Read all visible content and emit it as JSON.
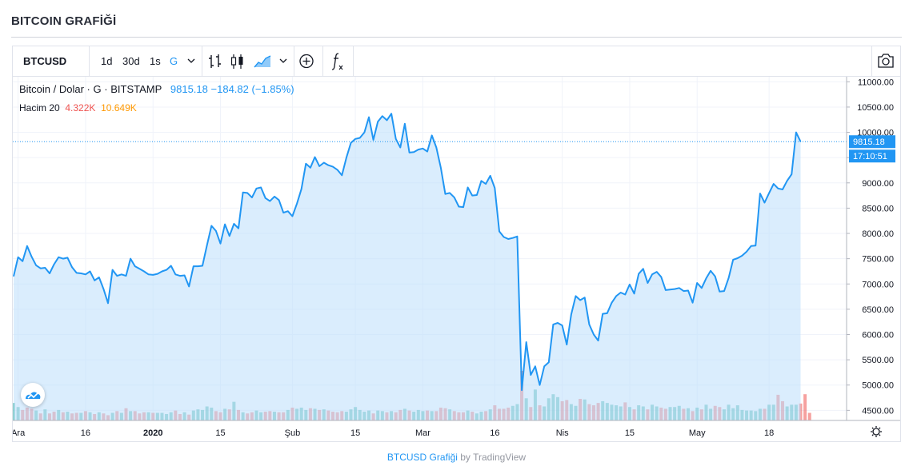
{
  "page": {
    "title": "BITCOIN GRAFİĞİ"
  },
  "toolbar": {
    "symbol": "BTCUSD",
    "intervals": [
      "1d",
      "30d",
      "1s",
      "G"
    ],
    "active_interval": "G",
    "icons": [
      "bar-chart-icon",
      "candlestick-icon",
      "area-chart-icon",
      "add-compare-icon",
      "indicators-icon",
      "camera-icon"
    ]
  },
  "legend": {
    "name": "Bitcoin / Dolar",
    "sep": "·",
    "interval": "G",
    "exchange": "BITSTAMP",
    "last": "9815.18",
    "change": "−184.82",
    "change_pct": "(−1.85%)",
    "volume_label": "Hacim 20",
    "volume_value": "4.322K",
    "volume_ma": "10.649K"
  },
  "price_label": {
    "value": "9815.18",
    "time": "17:10:51"
  },
  "colors": {
    "line": "#2196f3",
    "area": "#bbdefb",
    "vol_up": "#26a69a",
    "vol_down": "#ef5350"
  },
  "footer": {
    "link": "BTCUSD Grafiği",
    "by": "by",
    "brand": "TradingView"
  },
  "chart_data": {
    "type": "area",
    "title": "",
    "xlabel": "",
    "ylabel": "",
    "ylim": [
      4300,
      11100
    ],
    "y_ticks": [
      "11000.00",
      "10500.00",
      "10000.00",
      "9500.00",
      "9000.00",
      "8500.00",
      "8000.00",
      "7500.00",
      "7000.00",
      "6500.00",
      "6000.00",
      "5500.00",
      "5000.00",
      "4500.00"
    ],
    "y_tick_values": [
      11000,
      10500,
      10000,
      9500,
      9000,
      8500,
      8000,
      7500,
      7000,
      6500,
      6000,
      5500,
      5000,
      4500
    ],
    "x_ticks": [
      "Ara",
      "16",
      "2020",
      "15",
      "Şub",
      "15",
      "Mar",
      "16",
      "Nis",
      "15",
      "May",
      "18"
    ],
    "x_tick_index": [
      1,
      16,
      31,
      46,
      62,
      76,
      91,
      107,
      122,
      137,
      152,
      168
    ],
    "series": [
      {
        "values": [
          7150,
          7530,
          7450,
          7750,
          7540,
          7370,
          7310,
          7320,
          7210,
          7390,
          7530,
          7500,
          7520,
          7330,
          7220,
          7210,
          7190,
          7250,
          7070,
          7130,
          6900,
          6620,
          7280,
          7160,
          7190,
          7160,
          7500,
          7350,
          7300,
          7250,
          7190,
          7180,
          7200,
          7250,
          7280,
          7360,
          7190,
          7160,
          7170,
          6950,
          7350,
          7350,
          7360,
          7770,
          8150,
          8050,
          7800,
          8180,
          7950,
          8190,
          8100,
          8810,
          8800,
          8710,
          8890,
          8910,
          8700,
          8640,
          8730,
          8660,
          8410,
          8440,
          8340,
          8590,
          8880,
          9380,
          9300,
          9510,
          9330,
          9400,
          9350,
          9320,
          9260,
          9150,
          9500,
          9790,
          9870,
          9890,
          10000,
          10300,
          9850,
          10210,
          10320,
          10240,
          10370,
          9870,
          9700,
          10170,
          9600,
          9610,
          9660,
          9680,
          9620,
          9940,
          9700,
          9300,
          8780,
          8800,
          8710,
          8530,
          8520,
          8910,
          8750,
          8760,
          9040,
          8980,
          9140,
          8900,
          8040,
          7930,
          7890,
          7910,
          7940,
          4900,
          5850,
          5200,
          5370,
          5000,
          5370,
          5450,
          6200,
          6230,
          6180,
          5800,
          6400,
          6760,
          6680,
          6730,
          6200,
          6000,
          5880,
          6410,
          6420,
          6630,
          6760,
          6830,
          6790,
          6990,
          6810,
          7200,
          7300,
          7020,
          7190,
          7240,
          7140,
          6880,
          6890,
          6900,
          6920,
          6860,
          6870,
          6630,
          7020,
          6920,
          7110,
          7260,
          7150,
          6850,
          6860,
          7120,
          7480,
          7510,
          7560,
          7640,
          7750,
          7760,
          8790,
          8610,
          8800,
          8980,
          8890,
          8870,
          9040,
          9170,
          10000,
          9815.18
        ]
      },
      {
        "name": "Hacim",
        "up": [
          true,
          true,
          false,
          false,
          false,
          true,
          false,
          true,
          false,
          false,
          true,
          false,
          true,
          false,
          false,
          true,
          false,
          true,
          false,
          true,
          false,
          false,
          true,
          false,
          true,
          false,
          true,
          false,
          false,
          false,
          true,
          false,
          true,
          true,
          true,
          true,
          false,
          false,
          true,
          false,
          true,
          true,
          true,
          true,
          true,
          false,
          false,
          true,
          false,
          true,
          false,
          true,
          false,
          false,
          true,
          true,
          false,
          false,
          true,
          false,
          false,
          true,
          false,
          true,
          true,
          true,
          false,
          true,
          false,
          true,
          false,
          false,
          false,
          false,
          true,
          true,
          true,
          true,
          true,
          true,
          false,
          true,
          true,
          false,
          true,
          false,
          false,
          true,
          false,
          true,
          true,
          true,
          false,
          true,
          false,
          false,
          false,
          true,
          false,
          false,
          false,
          true,
          false,
          true,
          true,
          false,
          true,
          false,
          false,
          false,
          false,
          true,
          true,
          false,
          true,
          false,
          true,
          false,
          true,
          true,
          true,
          true,
          false,
          false,
          true,
          true,
          false,
          true,
          false,
          false,
          false,
          true,
          true,
          true,
          true,
          true,
          false,
          true,
          false,
          true,
          true,
          false,
          true,
          true,
          false,
          false,
          true,
          true,
          true,
          false,
          true,
          false,
          true,
          false,
          true,
          true,
          false,
          false,
          true,
          true,
          true,
          true,
          true,
          true,
          true,
          true,
          true,
          false,
          true,
          true,
          false,
          false,
          true,
          true,
          true,
          false
        ],
        "values": [
          30,
          23,
          18,
          22,
          20,
          17,
          12,
          19,
          12,
          15,
          18,
          14,
          15,
          12,
          13,
          13,
          16,
          14,
          11,
          14,
          12,
          9,
          13,
          16,
          13,
          21,
          16,
          16,
          12,
          14,
          14,
          13,
          13,
          13,
          11,
          14,
          17,
          11,
          14,
          10,
          17,
          19,
          18,
          24,
          22,
          16,
          14,
          20,
          19,
          32,
          18,
          14,
          12,
          14,
          17,
          14,
          15,
          16,
          15,
          14,
          14,
          18,
          22,
          20,
          22,
          18,
          21,
          20,
          18,
          19,
          17,
          15,
          14,
          16,
          15,
          19,
          23,
          18,
          15,
          17,
          12,
          17,
          16,
          14,
          16,
          14,
          18,
          20,
          17,
          15,
          18,
          16,
          17,
          16,
          16,
          22,
          21,
          19,
          16,
          14,
          14,
          17,
          15,
          12,
          15,
          16,
          19,
          26,
          20,
          20,
          22,
          25,
          28,
          85,
          38,
          23,
          53,
          26,
          24,
          38,
          45,
          40,
          33,
          35,
          28,
          25,
          37,
          36,
          28,
          26,
          30,
          33,
          30,
          27,
          26,
          24,
          31,
          23,
          19,
          26,
          24,
          19,
          27,
          24,
          22,
          20,
          23,
          23,
          25,
          20,
          21,
          16,
          22,
          19,
          27,
          20,
          25,
          23,
          19,
          27,
          21,
          26,
          18,
          17,
          17,
          16,
          20,
          20,
          27,
          27,
          44,
          33,
          24,
          27,
          27,
          29,
          45,
          13
        ]
      }
    ]
  }
}
